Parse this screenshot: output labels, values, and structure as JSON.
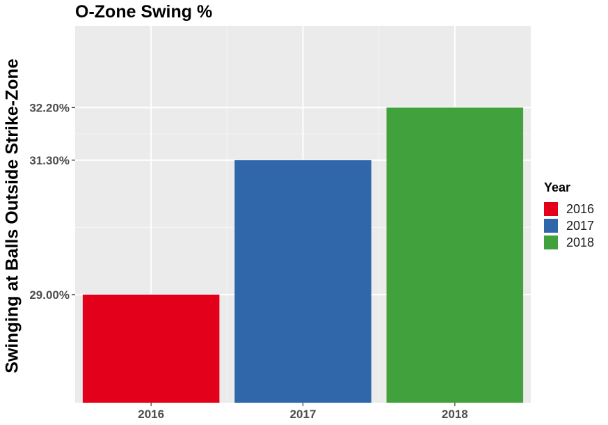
{
  "chart_data": {
    "type": "bar",
    "title": "O-Zone Swing %",
    "xlabel": "",
    "ylabel": "Swinging at Balls Outside Strike-Zone",
    "categories": [
      "2016",
      "2017",
      "2018"
    ],
    "values": [
      29.0,
      31.3,
      32.2
    ],
    "value_unit": "%",
    "colors": [
      "#e3001b",
      "#2f67aa",
      "#41a23d"
    ],
    "y_ticks": [
      {
        "value": 29.0,
        "label": "29.00%"
      },
      {
        "value": 31.3,
        "label": "31.30%"
      },
      {
        "value": 32.2,
        "label": "32.20%"
      }
    ],
    "ylim": [
      27.15,
      33.6
    ],
    "grid": true,
    "legend": {
      "title": "Year",
      "placement": "right",
      "entries": [
        "2016",
        "2017",
        "2018"
      ]
    }
  }
}
